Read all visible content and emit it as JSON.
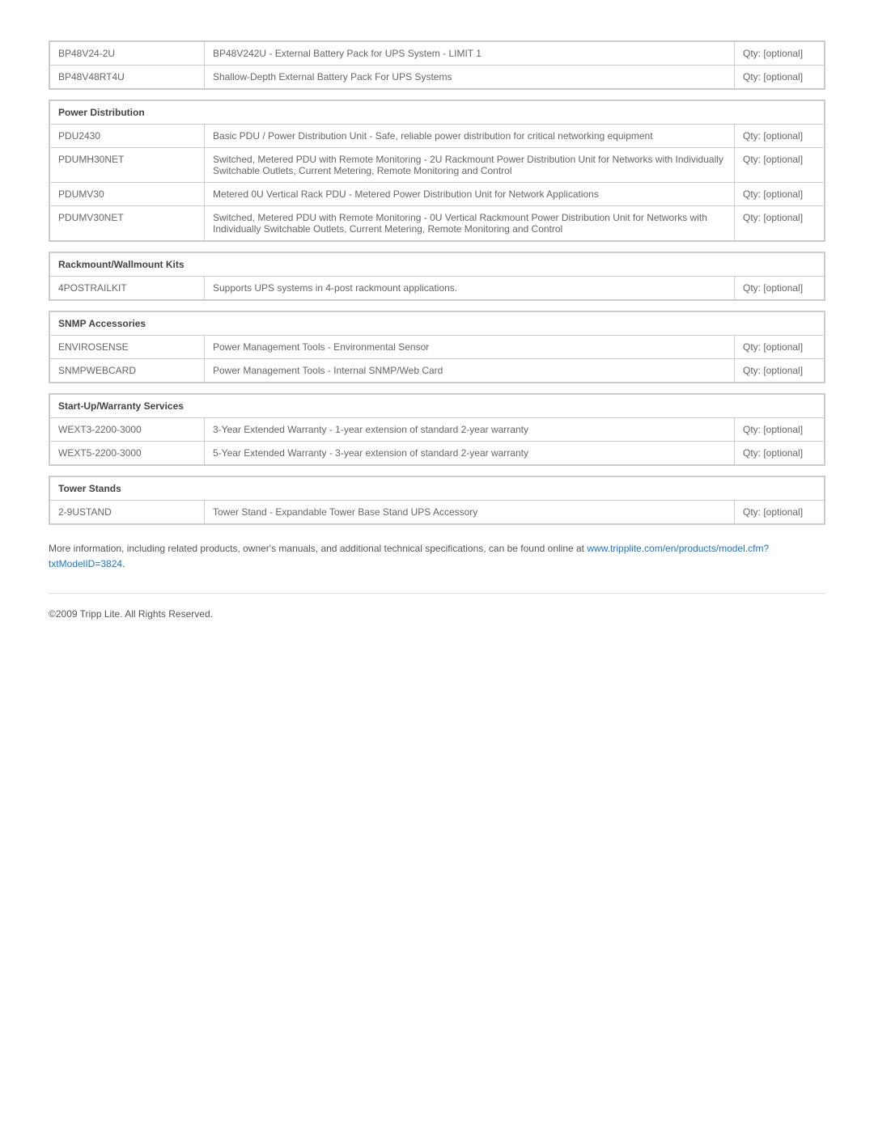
{
  "qty_label": "Qty: [optional]",
  "sections": [
    {
      "header": null,
      "rows": [
        {
          "sku": "BP48V24-2U",
          "desc": "BP48V242U - External Battery Pack for UPS System - LIMIT 1"
        },
        {
          "sku": "BP48V48RT4U",
          "desc": "Shallow-Depth External Battery Pack For UPS Systems"
        }
      ]
    },
    {
      "header": "Power Distribution",
      "rows": [
        {
          "sku": "PDU2430",
          "desc": "Basic PDU / Power Distribution Unit - Safe, reliable power distribution for critical networking equipment"
        },
        {
          "sku": "PDUMH30NET",
          "desc": "Switched, Metered PDU with Remote Monitoring - 2U Rackmount Power Distribution Unit for Networks with Individually Switchable Outlets, Current Metering, Remote Monitoring and Control"
        },
        {
          "sku": "PDUMV30",
          "desc": "Metered 0U Vertical Rack PDU - Metered Power Distribution Unit for Network Applications"
        },
        {
          "sku": "PDUMV30NET",
          "desc": "Switched, Metered PDU with Remote Monitoring - 0U Vertical Rackmount Power Distribution Unit for Networks with Individually Switchable Outlets, Current Metering, Remote Monitoring and Control"
        }
      ]
    },
    {
      "header": "Rackmount/Wallmount Kits",
      "rows": [
        {
          "sku": "4POSTRAILKIT",
          "desc": "Supports UPS systems in 4-post rackmount applications."
        }
      ]
    },
    {
      "header": "SNMP Accessories",
      "rows": [
        {
          "sku": "ENVIROSENSE",
          "desc": "Power Management Tools - Environmental Sensor"
        },
        {
          "sku": "SNMPWEBCARD",
          "desc": "Power Management Tools - Internal SNMP/Web Card"
        }
      ]
    },
    {
      "header": "Start-Up/Warranty Services",
      "rows": [
        {
          "sku": "WEXT3-2200-3000",
          "desc": "3-Year Extended Warranty - 1-year extension of standard 2-year warranty"
        },
        {
          "sku": "WEXT5-2200-3000",
          "desc": "5-Year Extended Warranty - 3-year extension of standard 2-year warranty"
        }
      ]
    },
    {
      "header": "Tower Stands",
      "rows": [
        {
          "sku": "2-9USTAND",
          "desc": "Tower Stand - Expandable Tower Base Stand UPS Accessory"
        }
      ]
    }
  ],
  "footer": {
    "text": "More information, including related products, owner's manuals, and additional technical specifications, can be found online at ",
    "link_text": "www.tripplite.com/en/products/model.cfm?txtModelID=3824",
    "period": ".",
    "copyright": "©2009 Tripp Lite.  All Rights Reserved."
  }
}
